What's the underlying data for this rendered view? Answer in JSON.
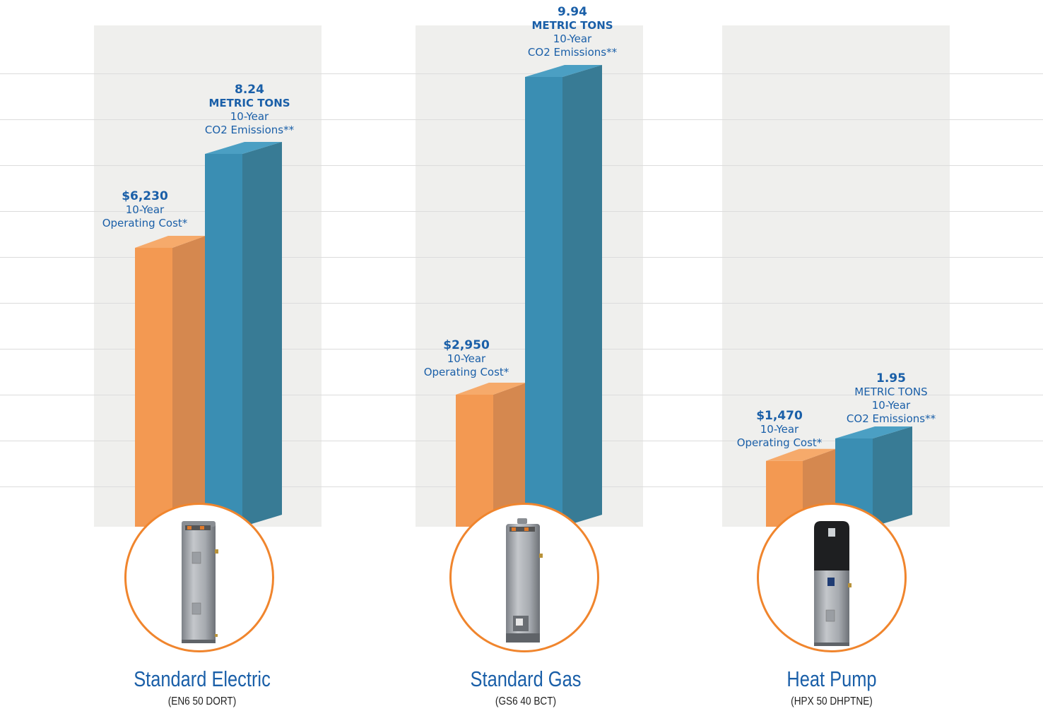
{
  "colors": {
    "cost": "#f39952",
    "co2": "#3a8eb3",
    "label": "#1a5fa8",
    "circle": "#f0852d"
  },
  "chart_data": {
    "type": "bar",
    "categories": [
      "Standard Electric",
      "Standard Gas",
      "Heat Pump"
    ],
    "series": [
      {
        "name": "10-Year Operating Cost*",
        "values": [
          6230,
          2950,
          1470
        ]
      },
      {
        "name": "10-Year CO2 Emissions**",
        "values": [
          8.24,
          9.94,
          1.95
        ]
      }
    ],
    "groups": [
      {
        "name": "Standard Electric",
        "model": "(EN6 50 DORT)",
        "cost": {
          "value_text": "$6,230",
          "line1": "10-Year",
          "line2": "Operating Cost*"
        },
        "co2": {
          "value_text": "8.24",
          "unit": "METRIC TONS",
          "line1": "10-Year",
          "line2": "CO2 Emissions**"
        },
        "icon": "electric-water-heater-icon"
      },
      {
        "name": "Standard Gas",
        "model": "(GS6 40 BCT)",
        "cost": {
          "value_text": "$2,950",
          "line1": "10-Year",
          "line2": "Operating Cost*"
        },
        "co2": {
          "value_text": "9.94",
          "unit": "METRIC TONS",
          "line1": "10-Year",
          "line2": "CO2 Emissions**"
        },
        "icon": "gas-water-heater-icon"
      },
      {
        "name": "Heat Pump",
        "model": "(HPX 50 DHPTNE)",
        "cost": {
          "value_text": "$1,470",
          "line1": "10-Year",
          "line2": "Operating Cost*"
        },
        "co2": {
          "value_text": "1.95",
          "unit": "METRIC TONS",
          "line1": "10-Year",
          "line2": "CO2 Emissions**"
        },
        "icon": "heat-pump-water-heater-icon"
      }
    ],
    "grid": true,
    "legend": "none"
  }
}
